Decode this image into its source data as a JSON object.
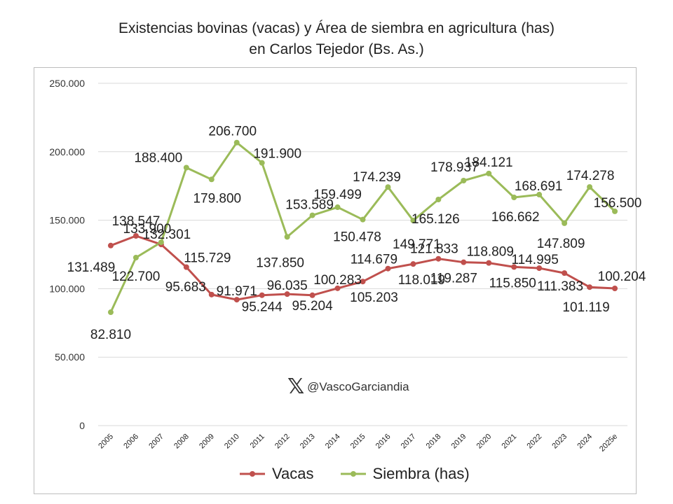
{
  "title_line1": "Existencias bovinas (vacas) y Área de siembra en agricultura (has)",
  "title_line2": "en Carlos Tejedor (Bs. As.)",
  "watermark": "@VascoGarciandia",
  "colors": {
    "vacas": "#c0504d",
    "siembra": "#9bbb59",
    "grid": "#d9d9d9"
  },
  "chart_data": {
    "type": "line",
    "title": "Existencias bovinas (vacas) y Área de siembra en agricultura (has) en Carlos Tejedor (Bs. As.)",
    "categories": [
      "2005",
      "2006",
      "2007",
      "2008",
      "2009",
      "2010",
      "2011",
      "2012",
      "2013",
      "2014",
      "2015",
      "2016",
      "2017",
      "2018",
      "2019",
      "2020",
      "2021",
      "2022",
      "2023",
      "2024",
      "2025e"
    ],
    "ylim": [
      0,
      250000
    ],
    "yticks": [
      0,
      50000,
      100000,
      150000,
      200000,
      250000
    ],
    "ytick_labels": [
      "0",
      "50.000",
      "100.000",
      "150.000",
      "200.000",
      "250.000"
    ],
    "grid": true,
    "legend": "bottom",
    "series": [
      {
        "name": "Vacas",
        "values": [
          131489,
          138547,
          132301,
          115729,
          95683,
          91971,
          95244,
          96035,
          95204,
          100283,
          105203,
          114679,
          118019,
          121833,
          119287,
          118809,
          115850,
          114995,
          111383,
          101119,
          100204
        ],
        "labels": [
          "131.489",
          "138.547",
          "132.301",
          "115.729",
          "95.683",
          "91.971",
          "95.244",
          "96.035",
          "95.204",
          "100.283",
          "105.203",
          "114.679",
          "118.019",
          "121.833",
          "119.287",
          "118.809",
          "115.850",
          "114.995",
          "111.383",
          "101.119",
          "100.204"
        ]
      },
      {
        "name": "Siembra (has)",
        "values": [
          82810,
          122700,
          133900,
          188400,
          179800,
          206700,
          191900,
          137850,
          153589,
          159499,
          150478,
          174239,
          149771,
          165126,
          178937,
          184121,
          166662,
          168691,
          147809,
          174278,
          156500
        ],
        "labels": [
          "82.810",
          "122.700",
          "133.900",
          "188.400",
          "179.800",
          "206.700",
          "191.900",
          "137.850",
          "153.589",
          "159.499",
          "150.478",
          "174.239",
          "149.771",
          "165.126",
          "178.937",
          "184.121",
          "166.662",
          "168.691",
          "147.809",
          "174.278",
          "156.500"
        ]
      }
    ]
  }
}
